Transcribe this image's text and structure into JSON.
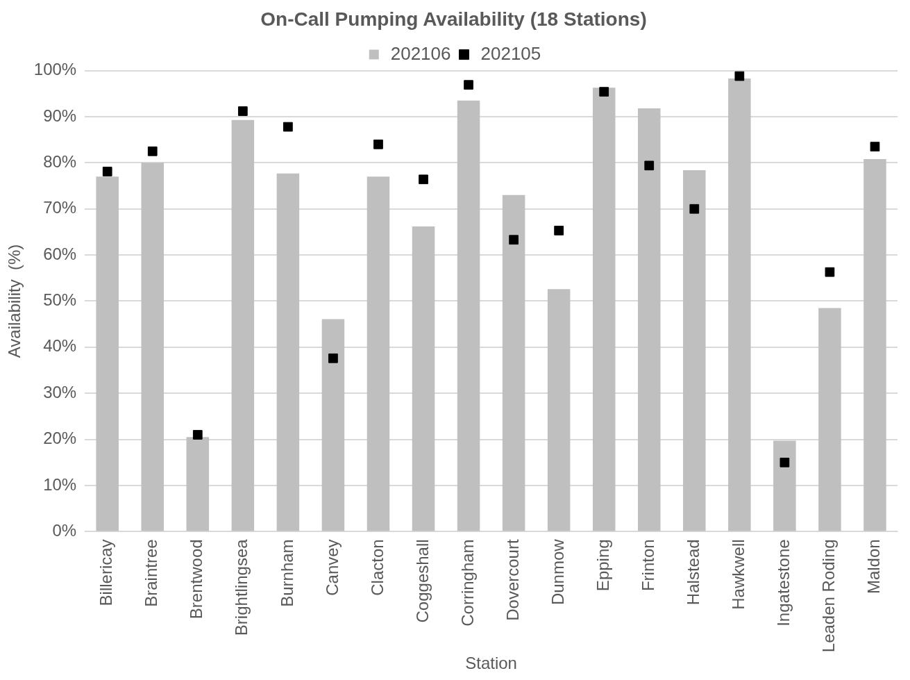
{
  "chart_data": {
    "type": "bar",
    "title": "On-Call Pumping Availability (18 Stations)",
    "xlabel": "Station",
    "ylabel": "Availability  (%)",
    "categories": [
      "Billericay",
      "Braintree",
      "Brentwood",
      "Brightlingsea",
      "Burnham",
      "Canvey",
      "Clacton",
      "Coggeshall",
      "Corringham",
      "Dovercourt",
      "Dunmow",
      "Epping",
      "Frinton",
      "Halstead",
      "Hawkwell",
      "Ingatestone",
      "Leaden Roding",
      "Maldon"
    ],
    "series": [
      {
        "name": "202106",
        "color": "#bfbfbf",
        "values": [
          77,
          80,
          20.5,
          89.3,
          77.7,
          46.1,
          77,
          66.2,
          93.5,
          73,
          52.6,
          96.3,
          91.8,
          78.4,
          98.3,
          19.7,
          48.5,
          80.8
        ]
      },
      {
        "name": "202105",
        "type": "scatter",
        "marker": "square",
        "color": "#000000",
        "x": [
          "Billericay",
          "Braintree",
          "Brentwood",
          "Brightlingsea",
          "Burnham",
          "Canvey",
          "Clacton",
          "Coggeshall",
          "Corringham",
          "Dovercourt",
          "Dunmow",
          "Epping",
          "Frinton",
          "Halstead",
          "Hawkwell",
          "Ingatestone",
          "Leaden Roding",
          "Maldon"
        ],
        "values": [
          78.1,
          82.5,
          21,
          91.2,
          87.8,
          37.6,
          84,
          76.4,
          96.9,
          63.3,
          65.3,
          95.4,
          79.4,
          70,
          98.8,
          15,
          56.3,
          83.5
        ]
      }
    ],
    "ylim": [
      0,
      100
    ],
    "yticks": [
      {
        "value": 0,
        "label": "0%"
      },
      {
        "value": 10,
        "label": "10%"
      },
      {
        "value": 20,
        "label": "20%"
      },
      {
        "value": 30,
        "label": "30%"
      },
      {
        "value": 40,
        "label": "40%"
      },
      {
        "value": 50,
        "label": "50%"
      },
      {
        "value": 60,
        "label": "60%"
      },
      {
        "value": 70,
        "label": "70%"
      },
      {
        "value": 80,
        "label": "80%"
      },
      {
        "value": 90,
        "label": "90%"
      },
      {
        "value": 100,
        "label": "100%"
      }
    ],
    "grid": "y",
    "legend": "top"
  }
}
